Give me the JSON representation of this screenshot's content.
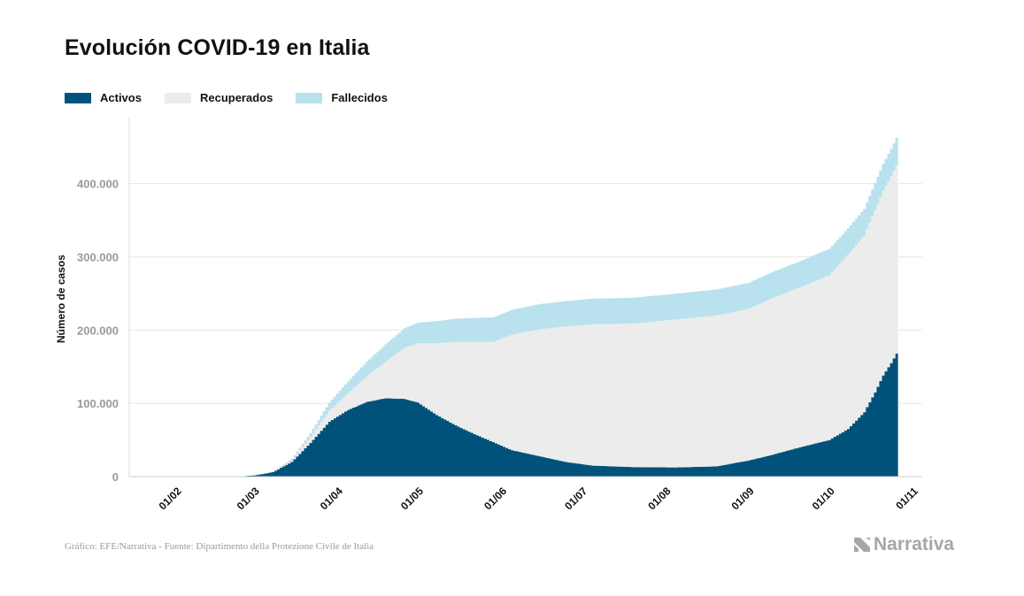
{
  "title": "Evolución COVID-19 en Italia",
  "legend": [
    {
      "label": "Activos",
      "color": "#00527a"
    },
    {
      "label": "Recuperados",
      "color": "#ececec"
    },
    {
      "label": "Fallecidos",
      "color": "#b9e1ee"
    }
  ],
  "source": "Gráfico: EFE/Narrativa - Fuente: Dipartimento della Protezione Civile de Italia",
  "logo_text": "Narrativa",
  "chart_data": {
    "type": "area",
    "stacked": true,
    "title": "Evolución COVID-19 en Italia",
    "ylabel": "Número de casos",
    "xlabel": "",
    "ylim": [
      0,
      490000
    ],
    "yticks": [
      0,
      100000,
      200000,
      300000,
      400000
    ],
    "ytick_labels": [
      "0",
      "100.000",
      "200.000",
      "300.000",
      "400.000"
    ],
    "xticks": [
      "2020-02-01",
      "2020-03-01",
      "2020-04-01",
      "2020-05-01",
      "2020-06-01",
      "2020-07-01",
      "2020-08-01",
      "2020-09-01",
      "2020-10-01",
      "2020-11-01"
    ],
    "xtick_labels": [
      "01/02",
      "01/03",
      "01/04",
      "01/05",
      "01/06",
      "01/07",
      "01/08",
      "01/09",
      "01/10",
      "01/11"
    ],
    "grid": true,
    "legend_position": "top-left",
    "x": [
      "2020-02-24",
      "2020-03-01",
      "2020-03-08",
      "2020-03-15",
      "2020-03-22",
      "2020-03-29",
      "2020-04-05",
      "2020-04-12",
      "2020-04-19",
      "2020-04-26",
      "2020-05-01",
      "2020-05-08",
      "2020-05-15",
      "2020-05-22",
      "2020-05-29",
      "2020-06-05",
      "2020-06-15",
      "2020-06-25",
      "2020-07-05",
      "2020-07-20",
      "2020-08-05",
      "2020-08-20",
      "2020-09-01",
      "2020-09-10",
      "2020-09-20",
      "2020-10-01",
      "2020-10-08",
      "2020-10-14",
      "2020-10-18",
      "2020-10-21",
      "2020-10-24",
      "2020-10-26"
    ],
    "series": [
      {
        "name": "Activos",
        "color": "#00527a",
        "values": [
          200,
          1600,
          6000,
          20000,
          46000,
          75000,
          91000,
          102000,
          107000,
          106000,
          101000,
          84000,
          70000,
          58000,
          47000,
          36000,
          28000,
          20000,
          15000,
          13000,
          12500,
          14000,
          22000,
          30000,
          40000,
          50000,
          65000,
          88000,
          115000,
          138000,
          155000,
          168000
        ]
      },
      {
        "name": "Recuperados",
        "color": "#ececec",
        "values": [
          0,
          100,
          700,
          2300,
          8000,
          15000,
          23000,
          35000,
          50000,
          70000,
          81000,
          98000,
          114000,
          126000,
          137000,
          158000,
          173000,
          185000,
          193000,
          196000,
          202000,
          206000,
          207000,
          214000,
          218000,
          225000,
          238000,
          241000,
          249000,
          252000,
          255000,
          257000
        ]
      },
      {
        "name": "Fallecidos",
        "color": "#b9e1ee",
        "values": [
          10,
          40,
          380,
          1800,
          5500,
          10800,
          15900,
          19900,
          23700,
          26600,
          28200,
          30200,
          31600,
          32600,
          33300,
          33800,
          34300,
          34600,
          34900,
          35100,
          35200,
          35400,
          35500,
          35600,
          35800,
          35900,
          36100,
          36400,
          36600,
          37000,
          37300,
          37500
        ]
      }
    ]
  }
}
